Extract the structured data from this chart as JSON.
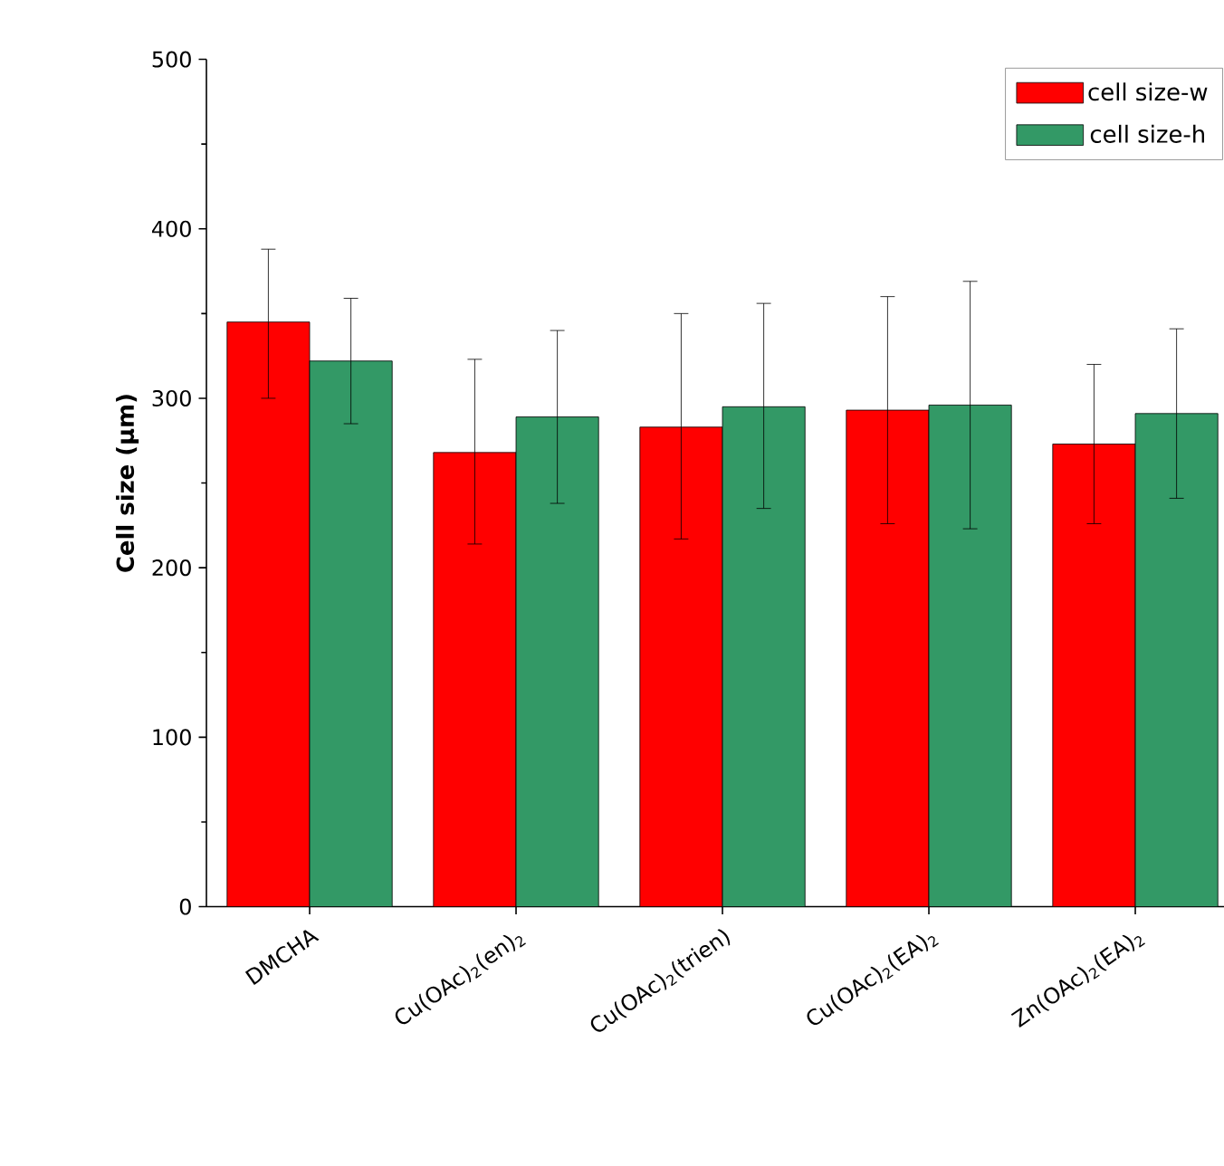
{
  "chart_data": {
    "type": "bar",
    "ylabel": "Cell size (µm)",
    "categories": [
      "DMCHA",
      "Cu(OAc)$_{2}$(en)$_{2}$",
      "Cu(OAc)$_{2}$(trien)",
      "Cu(OAc)$_{2}$(EA)$_{2}$",
      "Zn(OAc)$_{2}$(EA)$_{2}$"
    ],
    "series": [
      {
        "name": "cell size-w",
        "color": "#ff0000",
        "values": [
          345,
          268,
          283,
          293,
          273
        ],
        "errors": [
          [
            300,
            388
          ],
          [
            214,
            323
          ],
          [
            217,
            350
          ],
          [
            226,
            360
          ],
          [
            226,
            320
          ]
        ]
      },
      {
        "name": "cell size-h",
        "color": "#339966",
        "values": [
          322,
          289,
          295,
          296,
          291
        ],
        "errors": [
          [
            285,
            359
          ],
          [
            238,
            340
          ],
          [
            235,
            356
          ],
          [
            223,
            369
          ],
          [
            241,
            341
          ]
        ]
      }
    ],
    "ylim": [
      0,
      500
    ],
    "yticks": [
      0,
      100,
      200,
      300,
      400,
      500
    ],
    "legend": "top right",
    "grid": false
  }
}
